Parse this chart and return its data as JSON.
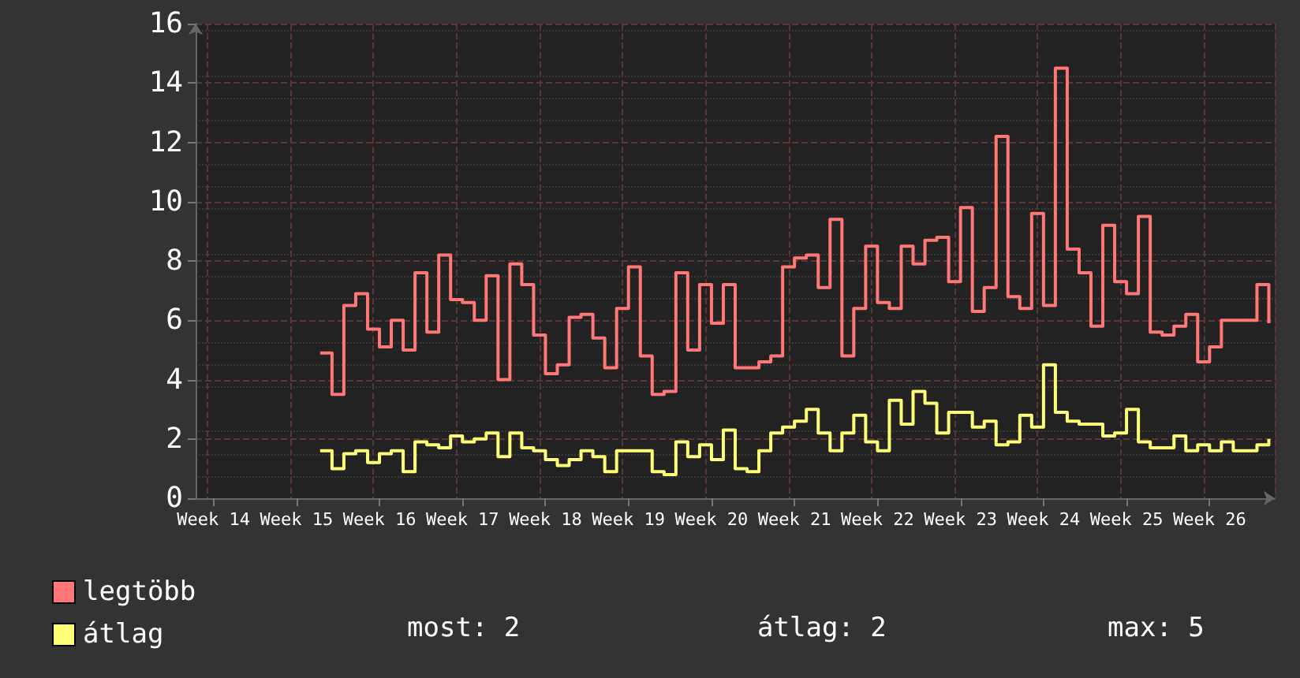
{
  "chart_data": {
    "type": "step",
    "categories": [
      null,
      "Week 14",
      null,
      null,
      null,
      null,
      null,
      null,
      "Week 15",
      null,
      null,
      null,
      null,
      null,
      null,
      "Week 16",
      null,
      null,
      null,
      null,
      null,
      null,
      "Week 17",
      null,
      null,
      null,
      null,
      null,
      null,
      "Week 18",
      null,
      null,
      null,
      null,
      null,
      null,
      "Week 19",
      null,
      null,
      null,
      null,
      null,
      null,
      "Week 20",
      null,
      null,
      null,
      null,
      null,
      null,
      "Week 21",
      null,
      null,
      null,
      null,
      null,
      null,
      "Week 22",
      null,
      null,
      null,
      null,
      null,
      null,
      "Week 23",
      null,
      null,
      null,
      null,
      null,
      null,
      "Week 24",
      null,
      null,
      null,
      null,
      null,
      null,
      "Week 25",
      null,
      null,
      null,
      null,
      null,
      null,
      "Week 26",
      null,
      null,
      null,
      null,
      null
    ],
    "series": [
      {
        "name": "legtöbb",
        "color": "#ff7777",
        "values": [
          null,
          null,
          null,
          null,
          null,
          null,
          null,
          null,
          null,
          null,
          4.9,
          3.5,
          6.5,
          6.9,
          5.7,
          5.1,
          6.0,
          5.0,
          7.6,
          5.6,
          8.2,
          6.7,
          6.6,
          6.0,
          7.5,
          4.0,
          7.9,
          7.2,
          5.5,
          4.2,
          4.5,
          6.1,
          6.2,
          5.4,
          4.4,
          6.4,
          7.8,
          4.8,
          3.5,
          3.6,
          7.6,
          5.0,
          7.2,
          5.9,
          7.2,
          4.4,
          4.4,
          4.6,
          4.8,
          7.8,
          8.1,
          8.2,
          7.1,
          9.4,
          4.8,
          6.4,
          8.5,
          6.6,
          6.4,
          8.5,
          7.9,
          8.7,
          8.8,
          7.3,
          9.8,
          6.3,
          7.1,
          12.2,
          6.8,
          6.4,
          9.6,
          6.5,
          14.5,
          8.4,
          7.6,
          5.8,
          9.2,
          7.3,
          6.9,
          9.5,
          5.6,
          5.5,
          5.8,
          6.2,
          4.6,
          5.1,
          6.0,
          6.0,
          6.0,
          7.2,
          5.9
        ]
      },
      {
        "name": "átlag",
        "color": "#ffff77",
        "values": [
          null,
          null,
          null,
          null,
          null,
          null,
          null,
          null,
          null,
          null,
          1.6,
          1.0,
          1.5,
          1.6,
          1.2,
          1.5,
          1.6,
          0.9,
          1.9,
          1.8,
          1.7,
          2.1,
          1.9,
          2.0,
          2.2,
          1.4,
          2.2,
          1.7,
          1.6,
          1.3,
          1.1,
          1.3,
          1.6,
          1.4,
          0.9,
          1.6,
          1.6,
          1.6,
          0.9,
          0.8,
          1.9,
          1.4,
          1.8,
          1.3,
          2.3,
          1.0,
          0.9,
          1.6,
          2.2,
          2.4,
          2.6,
          3.0,
          2.2,
          1.6,
          2.2,
          2.8,
          1.9,
          1.6,
          3.3,
          2.5,
          3.6,
          3.2,
          2.2,
          2.9,
          2.9,
          2.4,
          2.6,
          1.8,
          1.9,
          2.8,
          2.4,
          4.5,
          2.9,
          2.6,
          2.5,
          2.5,
          2.1,
          2.2,
          3.0,
          1.9,
          1.7,
          1.7,
          2.1,
          1.6,
          1.8,
          1.6,
          1.9,
          1.6,
          1.6,
          1.8,
          2.0
        ]
      }
    ],
    "ylim": [
      0,
      16
    ],
    "yticks": [
      0,
      2,
      4,
      6,
      8,
      10,
      12,
      14,
      16
    ],
    "grid": true,
    "legend": "bottom left",
    "line_style": "solid",
    "marker": "none",
    "annotations": [
      "most: 2",
      "átlag: 2",
      "max: 5"
    ]
  }
}
